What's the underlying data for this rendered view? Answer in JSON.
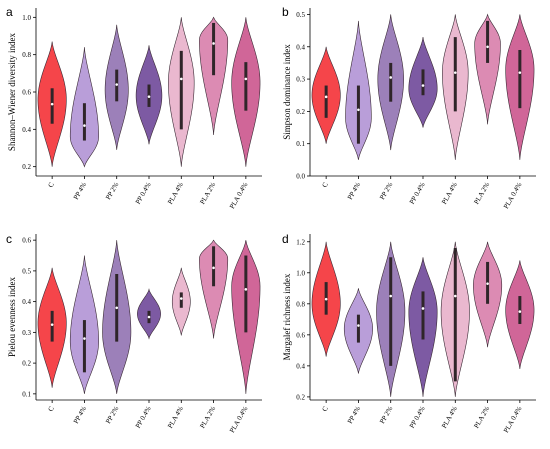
{
  "chart_data": [
    {
      "type": "violin",
      "panel": "a",
      "ylabel": "Shannon–Wiener diversity index",
      "ylim": [
        0.15,
        1.05
      ],
      "yticks": [
        0.2,
        0.4,
        0.6,
        0.8,
        1.0
      ],
      "ytick_labels": [
        "0.2",
        "0.4",
        "0.6",
        "0.8",
        "1.0"
      ],
      "categories": [
        "C",
        "PP 4%",
        "PP 2%",
        "PP 0.4%",
        "PLA 4%",
        "PLA 2%",
        "PLA 0.4%"
      ],
      "colors": [
        "#f5454a",
        "#b99ed9",
        "#9c80b9",
        "#7d5aa3",
        "#eab8cf",
        "#dc8bb3",
        "#d06698"
      ],
      "violins": [
        {
          "min": 0.2,
          "max": 0.87,
          "mode": 0.56,
          "width": 0.55,
          "q1": 0.43,
          "q3": 0.62,
          "median": 0.535
        },
        {
          "min": 0.2,
          "max": 0.84,
          "mode": 0.36,
          "width": 0.55,
          "q1": 0.34,
          "q3": 0.54,
          "median": 0.42
        },
        {
          "min": 0.29,
          "max": 0.96,
          "mode": 0.61,
          "width": 0.45,
          "q1": 0.55,
          "q3": 0.72,
          "median": 0.64
        },
        {
          "min": 0.32,
          "max": 0.85,
          "mode": 0.58,
          "width": 0.5,
          "q1": 0.52,
          "q3": 0.64,
          "median": 0.575
        },
        {
          "min": 0.2,
          "max": 1.0,
          "mode": 0.65,
          "width": 0.5,
          "q1": 0.4,
          "q3": 0.82,
          "median": 0.67
        },
        {
          "min": 0.37,
          "max": 1.0,
          "mode": 0.88,
          "width": 0.55,
          "q1": 0.69,
          "q3": 0.97,
          "median": 0.86
        },
        {
          "min": 0.2,
          "max": 1.0,
          "mode": 0.65,
          "width": 0.55,
          "q1": 0.5,
          "q3": 0.76,
          "median": 0.67
        }
      ]
    },
    {
      "type": "violin",
      "panel": "b",
      "ylabel": "Simpson dominance index",
      "ylim": [
        0.0,
        0.52
      ],
      "yticks": [
        0.0,
        0.1,
        0.2,
        0.3,
        0.4,
        0.5
      ],
      "ytick_labels": [
        "0.0",
        "0.1",
        "0.2",
        "0.3",
        "0.4",
        "0.5"
      ],
      "categories": [
        "C",
        "PP 4%",
        "PP 2%",
        "PP 0.4%",
        "PLA 4%",
        "PLA 2%",
        "PLA 0.4%"
      ],
      "colors": [
        "#f5454a",
        "#b99ed9",
        "#9c80b9",
        "#7d5aa3",
        "#eab8cf",
        "#dc8bb3",
        "#d06698"
      ],
      "violins": [
        {
          "min": 0.1,
          "max": 0.4,
          "mode": 0.25,
          "width": 0.55,
          "q1": 0.18,
          "q3": 0.28,
          "median": 0.245
        },
        {
          "min": 0.05,
          "max": 0.48,
          "mode": 0.18,
          "width": 0.5,
          "q1": 0.1,
          "q3": 0.28,
          "median": 0.205
        },
        {
          "min": 0.08,
          "max": 0.5,
          "mode": 0.3,
          "width": 0.5,
          "q1": 0.23,
          "q3": 0.35,
          "median": 0.305
        },
        {
          "min": 0.15,
          "max": 0.43,
          "mode": 0.27,
          "width": 0.55,
          "q1": 0.25,
          "q3": 0.33,
          "median": 0.28
        },
        {
          "min": 0.05,
          "max": 0.5,
          "mode": 0.32,
          "width": 0.5,
          "q1": 0.2,
          "q3": 0.43,
          "median": 0.32
        },
        {
          "min": 0.16,
          "max": 0.5,
          "mode": 0.41,
          "width": 0.5,
          "q1": 0.35,
          "q3": 0.48,
          "median": 0.4
        },
        {
          "min": 0.05,
          "max": 0.5,
          "mode": 0.33,
          "width": 0.55,
          "q1": 0.21,
          "q3": 0.39,
          "median": 0.32
        }
      ]
    },
    {
      "type": "violin",
      "panel": "c",
      "ylabel": "Pielou evenness index",
      "ylim": [
        0.08,
        0.62
      ],
      "yticks": [
        0.1,
        0.2,
        0.3,
        0.4,
        0.5,
        0.6
      ],
      "ytick_labels": [
        "0.1",
        "0.2",
        "0.3",
        "0.4",
        "0.5",
        "0.6"
      ],
      "categories": [
        "C",
        "PP 4%",
        "PP 2%",
        "PP 0.4%",
        "PLA 4%",
        "PLA 2%",
        "PLA 0.4%"
      ],
      "colors": [
        "#f5454a",
        "#b99ed9",
        "#9c80b9",
        "#7d5aa3",
        "#eab8cf",
        "#dc8bb3",
        "#d06698"
      ],
      "violins": [
        {
          "min": 0.12,
          "max": 0.51,
          "mode": 0.33,
          "width": 0.55,
          "q1": 0.27,
          "q3": 0.37,
          "median": 0.325
        },
        {
          "min": 0.1,
          "max": 0.55,
          "mode": 0.27,
          "width": 0.55,
          "q1": 0.17,
          "q3": 0.34,
          "median": 0.28
        },
        {
          "min": 0.1,
          "max": 0.6,
          "mode": 0.3,
          "width": 0.55,
          "q1": 0.27,
          "q3": 0.49,
          "median": 0.38
        },
        {
          "min": 0.28,
          "max": 0.44,
          "mode": 0.36,
          "width": 0.45,
          "q1": 0.33,
          "q3": 0.37,
          "median": 0.35
        },
        {
          "min": 0.29,
          "max": 0.51,
          "mode": 0.4,
          "width": 0.35,
          "q1": 0.38,
          "q3": 0.43,
          "median": 0.41
        },
        {
          "min": 0.28,
          "max": 0.6,
          "mode": 0.54,
          "width": 0.55,
          "q1": 0.45,
          "q3": 0.58,
          "median": 0.51
        },
        {
          "min": 0.1,
          "max": 0.6,
          "mode": 0.45,
          "width": 0.55,
          "q1": 0.3,
          "q3": 0.55,
          "median": 0.44
        }
      ]
    },
    {
      "type": "violin",
      "panel": "d",
      "ylabel": "Margalef richness index",
      "ylim": [
        0.18,
        1.25
      ],
      "yticks": [
        0.2,
        0.4,
        0.6,
        0.8,
        1.0,
        1.2
      ],
      "ytick_labels": [
        "0.2",
        "0.4",
        "0.6",
        "0.8",
        "1.0",
        "1.2"
      ],
      "categories": [
        "C",
        "PP 4%",
        "PP 2%",
        "PP 0.4%",
        "PLA 4%",
        "PLA 2%",
        "PLA 0.4%"
      ],
      "colors": [
        "#f5454a",
        "#b99ed9",
        "#9c80b9",
        "#7d5aa3",
        "#eab8cf",
        "#dc8bb3",
        "#d06698"
      ],
      "violins": [
        {
          "min": 0.46,
          "max": 1.2,
          "mode": 0.8,
          "width": 0.55,
          "q1": 0.73,
          "q3": 0.94,
          "median": 0.83
        },
        {
          "min": 0.35,
          "max": 0.9,
          "mode": 0.64,
          "width": 0.55,
          "q1": 0.55,
          "q3": 0.73,
          "median": 0.66
        },
        {
          "min": 0.2,
          "max": 1.2,
          "mode": 0.75,
          "width": 0.55,
          "q1": 0.4,
          "q3": 1.1,
          "median": 0.85
        },
        {
          "min": 0.2,
          "max": 1.1,
          "mode": 0.75,
          "width": 0.55,
          "q1": 0.57,
          "q3": 0.88,
          "median": 0.77
        },
        {
          "min": 0.2,
          "max": 1.2,
          "mode": 0.75,
          "width": 0.55,
          "q1": 0.3,
          "q3": 1.16,
          "median": 0.85
        },
        {
          "min": 0.52,
          "max": 1.2,
          "mode": 0.92,
          "width": 0.55,
          "q1": 0.8,
          "q3": 1.07,
          "median": 0.93
        },
        {
          "min": 0.38,
          "max": 1.08,
          "mode": 0.76,
          "width": 0.55,
          "q1": 0.67,
          "q3": 0.85,
          "median": 0.75
        }
      ]
    }
  ]
}
